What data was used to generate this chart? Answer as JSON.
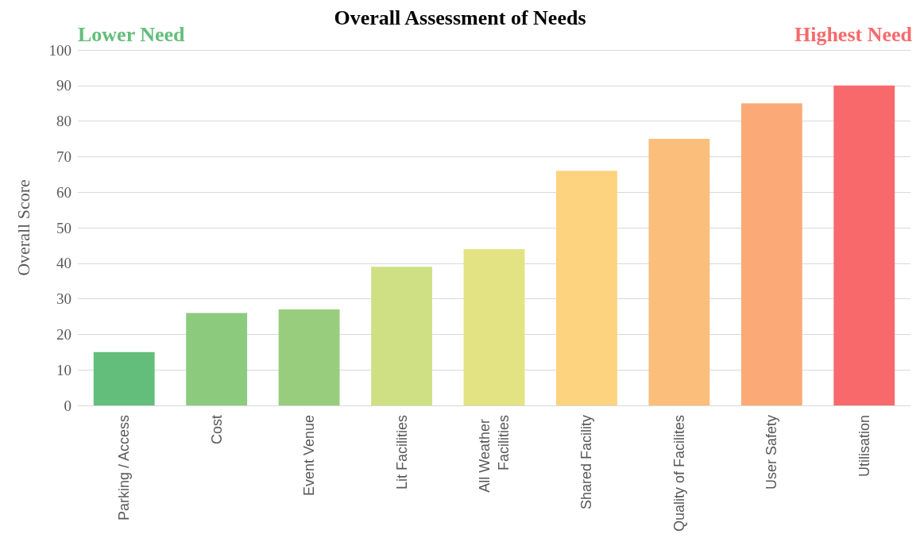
{
  "chart_data": {
    "type": "bar",
    "title": "Overall Assessment of Needs",
    "ylabel": "Overall Score",
    "categories": [
      "Parking / Access",
      "Cost",
      "Event Venue",
      "Lit Facilities",
      "All Weather Facilities",
      "Shared Facility",
      "Quality of Facilites",
      "User Safety",
      "Utilisation"
    ],
    "values": [
      15,
      26,
      27,
      39,
      44,
      66,
      75,
      85,
      90
    ],
    "colors": [
      "#63be7b",
      "#8ccb7e",
      "#98cd7e",
      "#cfe084",
      "#e3e383",
      "#fdd37f",
      "#fbbe7b",
      "#fbaa77",
      "#f8696b"
    ],
    "ylim": [
      0,
      100
    ],
    "yticks": [
      0,
      10,
      20,
      30,
      40,
      50,
      60,
      70,
      80,
      90,
      100
    ],
    "grid": "y",
    "annotations": [
      "Lower Need",
      "Highest Need"
    ]
  }
}
